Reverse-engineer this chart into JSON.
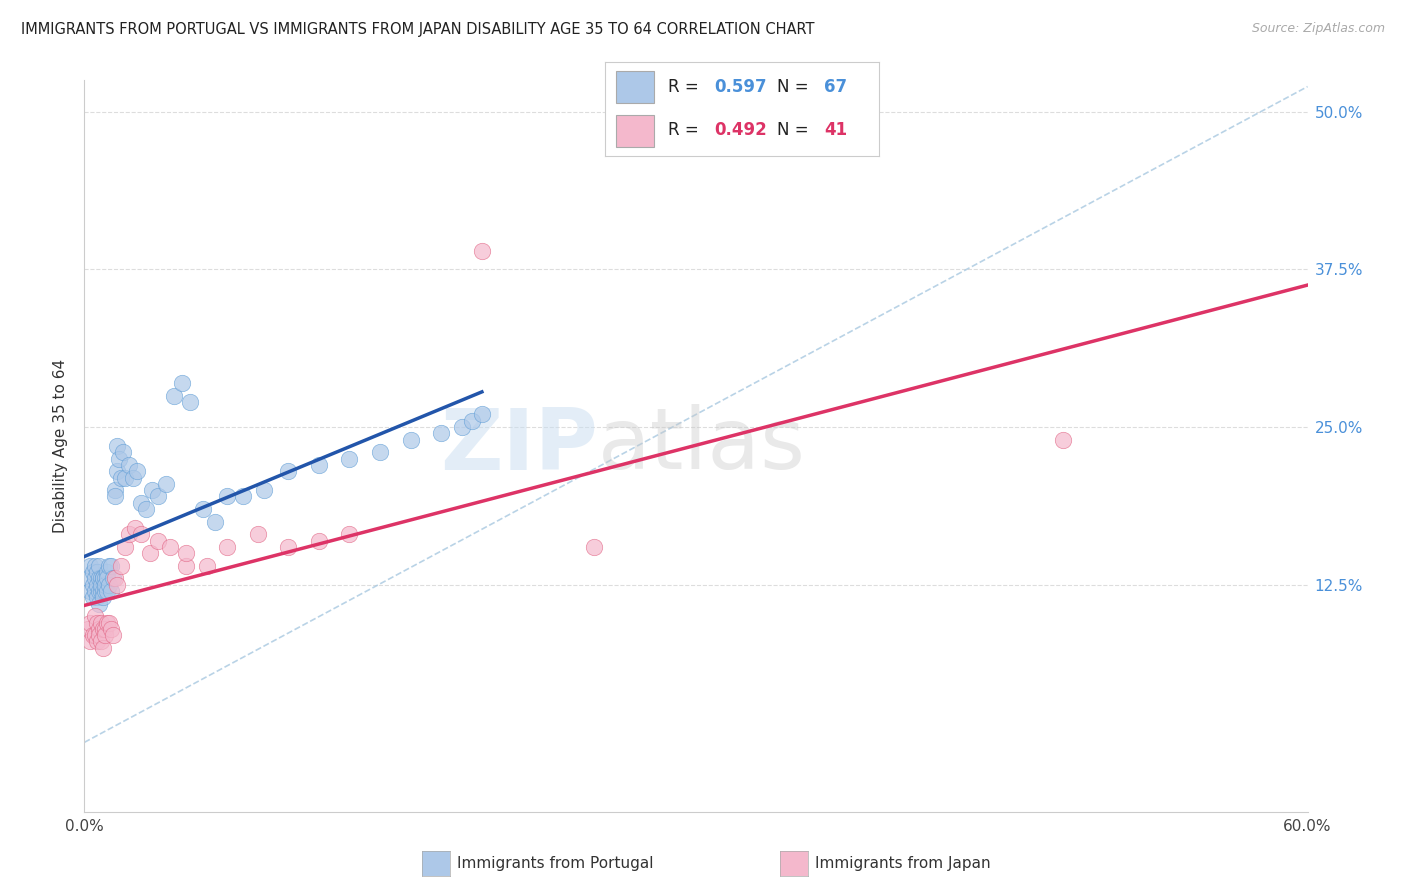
{
  "title": "IMMIGRANTS FROM PORTUGAL VS IMMIGRANTS FROM JAPAN DISABILITY AGE 35 TO 64 CORRELATION CHART",
  "source": "Source: ZipAtlas.com",
  "ylabel": "Disability Age 35 to 64",
  "xlim": [
    0.0,
    0.6
  ],
  "ylim": [
    -0.055,
    0.525
  ],
  "xticks": [
    0.0,
    0.1,
    0.2,
    0.3,
    0.4,
    0.5,
    0.6
  ],
  "xticklabels": [
    "0.0%",
    "",
    "",
    "",
    "",
    "",
    "60.0%"
  ],
  "yticks": [
    0.0,
    0.125,
    0.25,
    0.375,
    0.5
  ],
  "yticklabels_right": [
    "",
    "12.5%",
    "25.0%",
    "37.5%",
    "50.0%"
  ],
  "R_portugal": 0.597,
  "N_portugal": 67,
  "R_japan": 0.492,
  "N_japan": 41,
  "color_portugal_fill": "#adc8e8",
  "color_portugal_edge": "#5b9bd5",
  "color_japan_fill": "#f4b8cc",
  "color_japan_edge": "#e06080",
  "line_color_portugal": "#2255aa",
  "line_color_japan": "#dd3366",
  "diagonal_color": "#a8c8e0",
  "grid_color": "#dddddd",
  "legend_label_portugal": "Immigrants from Portugal",
  "legend_label_japan": "Immigrants from Japan",
  "tick_color_right": "#4a90d9",
  "portugal_x": [
    0.002,
    0.003,
    0.003,
    0.004,
    0.004,
    0.004,
    0.005,
    0.005,
    0.005,
    0.006,
    0.006,
    0.006,
    0.007,
    0.007,
    0.007,
    0.007,
    0.008,
    0.008,
    0.008,
    0.009,
    0.009,
    0.009,
    0.009,
    0.01,
    0.01,
    0.01,
    0.011,
    0.011,
    0.011,
    0.012,
    0.012,
    0.013,
    0.013,
    0.014,
    0.015,
    0.015,
    0.016,
    0.016,
    0.017,
    0.018,
    0.019,
    0.02,
    0.022,
    0.024,
    0.026,
    0.028,
    0.03,
    0.033,
    0.036,
    0.04,
    0.044,
    0.048,
    0.052,
    0.058,
    0.064,
    0.07,
    0.078,
    0.088,
    0.1,
    0.115,
    0.13,
    0.145,
    0.16,
    0.175,
    0.185,
    0.19,
    0.195
  ],
  "portugal_y": [
    0.13,
    0.12,
    0.14,
    0.125,
    0.135,
    0.115,
    0.13,
    0.12,
    0.14,
    0.125,
    0.135,
    0.115,
    0.13,
    0.12,
    0.14,
    0.11,
    0.13,
    0.12,
    0.125,
    0.13,
    0.12,
    0.13,
    0.115,
    0.13,
    0.12,
    0.125,
    0.135,
    0.12,
    0.13,
    0.14,
    0.125,
    0.14,
    0.12,
    0.13,
    0.2,
    0.195,
    0.235,
    0.215,
    0.225,
    0.21,
    0.23,
    0.21,
    0.22,
    0.21,
    0.215,
    0.19,
    0.185,
    0.2,
    0.195,
    0.205,
    0.275,
    0.285,
    0.27,
    0.185,
    0.175,
    0.195,
    0.195,
    0.2,
    0.215,
    0.22,
    0.225,
    0.23,
    0.24,
    0.245,
    0.25,
    0.255,
    0.26
  ],
  "japan_x": [
    0.002,
    0.003,
    0.003,
    0.004,
    0.005,
    0.005,
    0.006,
    0.006,
    0.007,
    0.007,
    0.008,
    0.008,
    0.009,
    0.009,
    0.01,
    0.01,
    0.011,
    0.012,
    0.013,
    0.014,
    0.015,
    0.016,
    0.018,
    0.02,
    0.022,
    0.025,
    0.028,
    0.032,
    0.036,
    0.042,
    0.05,
    0.06,
    0.07,
    0.085,
    0.1,
    0.115,
    0.13,
    0.195,
    0.25,
    0.48,
    0.05
  ],
  "japan_y": [
    0.09,
    0.08,
    0.095,
    0.085,
    0.085,
    0.1,
    0.08,
    0.095,
    0.09,
    0.085,
    0.095,
    0.08,
    0.09,
    0.075,
    0.09,
    0.085,
    0.095,
    0.095,
    0.09,
    0.085,
    0.13,
    0.125,
    0.14,
    0.155,
    0.165,
    0.17,
    0.165,
    0.15,
    0.16,
    0.155,
    0.14,
    0.14,
    0.155,
    0.165,
    0.155,
    0.16,
    0.165,
    0.39,
    0.155,
    0.24,
    0.15
  ],
  "port_line_x": [
    0.0,
    0.195
  ],
  "port_line_y_intercept": 0.108,
  "port_line_slope": 0.78,
  "jap_line_x": [
    0.0,
    0.6
  ],
  "jap_line_y_intercept": 0.085,
  "jap_line_slope": 0.52
}
